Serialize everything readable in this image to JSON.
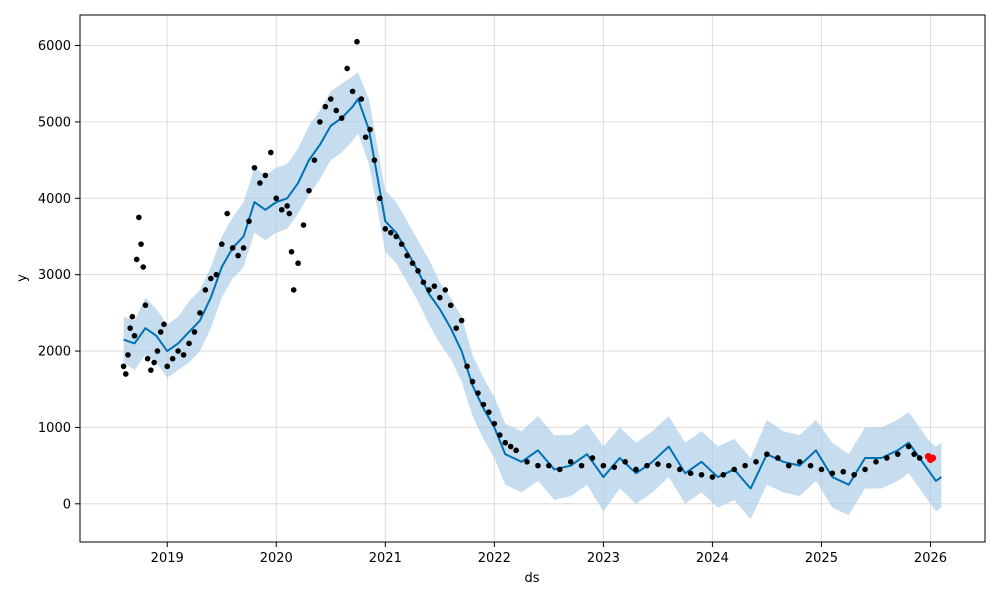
{
  "chart_data": {
    "type": "line",
    "xlabel": "ds",
    "ylabel": "y",
    "xlim": [
      2018.2,
      2026.5
    ],
    "ylim": [
      -500,
      6400
    ],
    "grid": true,
    "x_ticks": [
      2019,
      2020,
      2021,
      2022,
      2023,
      2024,
      2025,
      2026
    ],
    "x_tick_labels": [
      "2019",
      "2020",
      "2021",
      "2022",
      "2023",
      "2024",
      "2025",
      "2026"
    ],
    "y_ticks": [
      0,
      1000,
      2000,
      3000,
      4000,
      5000,
      6000
    ],
    "y_tick_labels": [
      "0",
      "1000",
      "2000",
      "3000",
      "4000",
      "5000",
      "6000"
    ],
    "colors": {
      "forecast": "#0072B2",
      "interval": "#a8cbe6",
      "observed": "#000000",
      "holdout": "#ff0000",
      "grid": "#dcdcdc"
    },
    "series": [
      {
        "role": "forecast-line",
        "x": [
          2018.6,
          2018.7,
          2018.8,
          2018.9,
          2019.0,
          2019.1,
          2019.2,
          2019.3,
          2019.4,
          2019.5,
          2019.6,
          2019.7,
          2019.8,
          2019.9,
          2020.0,
          2020.1,
          2020.2,
          2020.3,
          2020.4,
          2020.5,
          2020.6,
          2020.7,
          2020.75,
          2020.85,
          2021.0,
          2021.1,
          2021.2,
          2021.3,
          2021.4,
          2021.5,
          2021.6,
          2021.7,
          2021.8,
          2021.9,
          2022.0,
          2022.1,
          2022.25,
          2022.4,
          2022.55,
          2022.7,
          2022.85,
          2023.0,
          2023.15,
          2023.3,
          2023.45,
          2023.6,
          2023.75,
          2023.9,
          2024.05,
          2024.2,
          2024.35,
          2024.5,
          2024.65,
          2024.8,
          2024.95,
          2025.1,
          2025.25,
          2025.4,
          2025.55,
          2025.7,
          2025.8,
          2025.9,
          2026.0,
          2026.05,
          2026.1
        ],
        "y": [
          2150,
          2100,
          2300,
          2200,
          2000,
          2100,
          2250,
          2400,
          2700,
          3100,
          3350,
          3500,
          3950,
          3850,
          3950,
          4000,
          4200,
          4500,
          4700,
          4950,
          5050,
          5200,
          5300,
          4900,
          3700,
          3550,
          3300,
          3050,
          2750,
          2550,
          2300,
          2000,
          1550,
          1250,
          1000,
          650,
          550,
          700,
          450,
          500,
          650,
          350,
          600,
          400,
          550,
          750,
          400,
          550,
          350,
          450,
          200,
          650,
          550,
          500,
          700,
          350,
          250,
          600,
          600,
          700,
          800,
          600,
          400,
          300,
          350
        ]
      },
      {
        "role": "uncertainty-interval",
        "x": [
          2018.6,
          2018.7,
          2018.8,
          2018.9,
          2019.0,
          2019.1,
          2019.2,
          2019.3,
          2019.4,
          2019.5,
          2019.6,
          2019.7,
          2019.8,
          2019.9,
          2020.0,
          2020.1,
          2020.2,
          2020.3,
          2020.4,
          2020.5,
          2020.6,
          2020.7,
          2020.75,
          2020.85,
          2021.0,
          2021.1,
          2021.2,
          2021.3,
          2021.4,
          2021.5,
          2021.6,
          2021.7,
          2021.8,
          2021.9,
          2022.0,
          2022.1,
          2022.25,
          2022.4,
          2022.55,
          2022.7,
          2022.85,
          2023.0,
          2023.15,
          2023.3,
          2023.45,
          2023.6,
          2023.75,
          2023.9,
          2024.05,
          2024.2,
          2024.35,
          2024.5,
          2024.65,
          2024.8,
          2024.95,
          2025.1,
          2025.25,
          2025.4,
          2025.55,
          2025.7,
          2025.8,
          2025.9,
          2026.0,
          2026.05,
          2026.1
        ],
        "upper": [
          2450,
          2400,
          2700,
          2550,
          2350,
          2450,
          2650,
          2800,
          3100,
          3500,
          3750,
          3950,
          4400,
          4300,
          4400,
          4450,
          4650,
          4950,
          5150,
          5400,
          5500,
          5600,
          5650,
          5300,
          4100,
          3950,
          3700,
          3450,
          3200,
          2900,
          2700,
          2450,
          1950,
          1650,
          1400,
          1050,
          950,
          1150,
          900,
          900,
          1050,
          750,
          1000,
          800,
          950,
          1150,
          800,
          950,
          750,
          850,
          600,
          1100,
          950,
          900,
          1100,
          800,
          650,
          1000,
          1000,
          1100,
          1200,
          1000,
          800,
          750,
          800
        ],
        "lower": [
          1850,
          1750,
          1950,
          1850,
          1650,
          1750,
          1850,
          2000,
          2300,
          2700,
          2950,
          3100,
          3550,
          3450,
          3550,
          3600,
          3800,
          4050,
          4250,
          4500,
          4600,
          4750,
          4850,
          4450,
          3300,
          3150,
          2900,
          2650,
          2350,
          2100,
          1900,
          1600,
          1150,
          850,
          600,
          250,
          150,
          300,
          50,
          100,
          250,
          -100,
          200,
          0,
          150,
          350,
          0,
          150,
          -50,
          50,
          -200,
          250,
          150,
          100,
          300,
          -50,
          -150,
          200,
          200,
          300,
          400,
          200,
          0,
          -100,
          -50
        ]
      },
      {
        "role": "observed",
        "x": [
          2018.6,
          2018.62,
          2018.64,
          2018.66,
          2018.68,
          2018.7,
          2018.72,
          2018.74,
          2018.76,
          2018.78,
          2018.8,
          2018.82,
          2018.85,
          2018.88,
          2018.91,
          2018.94,
          2018.97,
          2019.0,
          2019.05,
          2019.1,
          2019.15,
          2019.2,
          2019.25,
          2019.3,
          2019.35,
          2019.4,
          2019.45,
          2019.5,
          2019.55,
          2019.6,
          2019.65,
          2019.7,
          2019.75,
          2019.8,
          2019.85,
          2019.9,
          2019.95,
          2020.0,
          2020.05,
          2020.1,
          2020.12,
          2020.14,
          2020.16,
          2020.2,
          2020.25,
          2020.3,
          2020.35,
          2020.4,
          2020.45,
          2020.5,
          2020.55,
          2020.6,
          2020.65,
          2020.7,
          2020.74,
          2020.78,
          2020.82,
          2020.86,
          2020.9,
          2020.95,
          2021.0,
          2021.05,
          2021.1,
          2021.15,
          2021.2,
          2021.25,
          2021.3,
          2021.35,
          2021.4,
          2021.45,
          2021.5,
          2021.55,
          2021.6,
          2021.65,
          2021.7,
          2021.75,
          2021.8,
          2021.85,
          2021.9,
          2021.95,
          2022.0,
          2022.05,
          2022.1,
          2022.15,
          2022.2,
          2022.3,
          2022.4,
          2022.5,
          2022.6,
          2022.7,
          2022.8,
          2022.9,
          2023.0,
          2023.1,
          2023.2,
          2023.3,
          2023.4,
          2023.5,
          2023.6,
          2023.7,
          2023.8,
          2023.9,
          2024.0,
          2024.1,
          2024.2,
          2024.3,
          2024.4,
          2024.5,
          2024.6,
          2024.7,
          2024.8,
          2024.9,
          2025.0,
          2025.1,
          2025.2,
          2025.3,
          2025.4,
          2025.5,
          2025.6,
          2025.7,
          2025.8,
          2025.85,
          2025.9
        ],
        "y": [
          1800,
          1700,
          1950,
          2300,
          2450,
          2200,
          3200,
          3750,
          3400,
          3100,
          2600,
          1900,
          1750,
          1850,
          2000,
          2250,
          2350,
          1800,
          1900,
          2000,
          1950,
          2100,
          2250,
          2500,
          2800,
          2950,
          3000,
          3400,
          3800,
          3350,
          3250,
          3350,
          3700,
          4400,
          4200,
          4300,
          4600,
          4000,
          3850,
          3900,
          3800,
          3300,
          2800,
          3150,
          3650,
          4100,
          4500,
          5000,
          5200,
          5300,
          5150,
          5050,
          5700,
          5400,
          6050,
          5300,
          4800,
          4900,
          4500,
          4000,
          3600,
          3550,
          3500,
          3400,
          3250,
          3150,
          3050,
          2900,
          2800,
          2850,
          2700,
          2800,
          2600,
          2300,
          2400,
          1800,
          1600,
          1450,
          1300,
          1200,
          1050,
          900,
          800,
          750,
          700,
          550,
          500,
          500,
          450,
          550,
          500,
          600,
          500,
          480,
          550,
          450,
          500,
          520,
          500,
          450,
          400,
          380,
          350,
          380,
          450,
          500,
          550,
          650,
          600,
          500,
          550,
          500,
          450,
          400,
          420,
          380,
          450,
          550,
          600,
          650,
          750,
          650,
          600
        ]
      },
      {
        "role": "holdout",
        "x": [
          2025.98,
          2026.0,
          2026.02
        ],
        "y": [
          620,
          580,
          600
        ]
      }
    ]
  }
}
